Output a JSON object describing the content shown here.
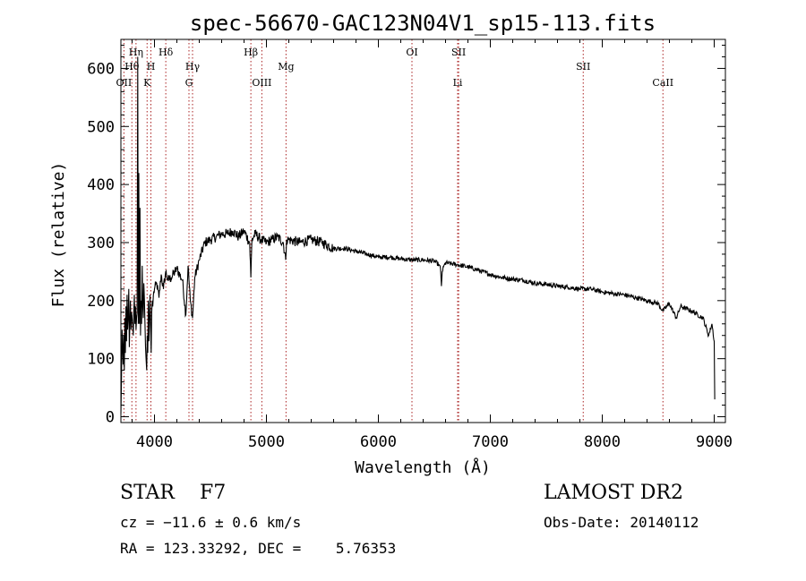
{
  "chart_data": {
    "type": "line",
    "title": "spec-56670-GAC123N04V1_sp15-113.fits",
    "xlabel": "Wavelength (Å)",
    "ylabel": "Flux (relative)",
    "xlim": [
      3700,
      9100
    ],
    "ylim": [
      -10,
      650
    ],
    "xticks": [
      4000,
      5000,
      6000,
      7000,
      8000,
      9000
    ],
    "yticks": [
      0,
      100,
      200,
      300,
      400,
      500,
      600
    ],
    "grid": false,
    "line_color": "#000000",
    "marker_color": "#aa2222",
    "spectrum": {
      "x": [
        3700,
        3705,
        3710,
        3715,
        3720,
        3725,
        3730,
        3735,
        3740,
        3745,
        3750,
        3755,
        3760,
        3765,
        3770,
        3775,
        3780,
        3785,
        3790,
        3795,
        3800,
        3805,
        3810,
        3815,
        3820,
        3825,
        3830,
        3835,
        3840,
        3845,
        3850,
        3855,
        3860,
        3865,
        3870,
        3875,
        3880,
        3885,
        3890,
        3895,
        3900,
        3905,
        3910,
        3915,
        3920,
        3925,
        3930,
        3935,
        3940,
        3945,
        3950,
        3955,
        3960,
        3965,
        3970,
        3975,
        3980,
        3985,
        3990,
        4000,
        4020,
        4040,
        4060,
        4080,
        4100,
        4120,
        4150,
        4200,
        4250,
        4280,
        4300,
        4320,
        4340,
        4360,
        4400,
        4450,
        4500,
        4550,
        4600,
        4650,
        4700,
        4750,
        4800,
        4850,
        4861,
        4870,
        4900,
        4950,
        5000,
        5050,
        5100,
        5150,
        5172,
        5180,
        5200,
        5300,
        5400,
        5500,
        5600,
        5700,
        5800,
        5900,
        6000,
        6100,
        6200,
        6300,
        6400,
        6500,
        6540,
        6555,
        6563,
        6570,
        6590,
        6600,
        6700,
        6800,
        6900,
        7000,
        7100,
        7200,
        7300,
        7400,
        7500,
        7600,
        7700,
        7800,
        7900,
        8000,
        8100,
        8200,
        8300,
        8400,
        8500,
        8540,
        8600,
        8662,
        8700,
        8800,
        8900,
        8950,
        8980,
        9000,
        9005
      ],
      "y": [
        5,
        60,
        150,
        120,
        90,
        140,
        80,
        170,
        110,
        190,
        130,
        210,
        150,
        170,
        220,
        120,
        160,
        200,
        150,
        180,
        170,
        160,
        140,
        180,
        210,
        160,
        190,
        150,
        170,
        180,
        620,
        160,
        420,
        160,
        360,
        140,
        200,
        160,
        260,
        190,
        170,
        230,
        200,
        160,
        120,
        100,
        80,
        140,
        110,
        200,
        130,
        170,
        210,
        160,
        110,
        180,
        200,
        190,
        210,
        220,
        230,
        205,
        245,
        220,
        250,
        235,
        240,
        255,
        235,
        175,
        260,
        200,
        170,
        240,
        270,
        300,
        305,
        310,
        315,
        315,
        320,
        310,
        320,
        300,
        240,
        305,
        315,
        305,
        300,
        305,
        310,
        300,
        270,
        305,
        305,
        300,
        305,
        300,
        290,
        290,
        285,
        280,
        275,
        275,
        272,
        270,
        270,
        268,
        262,
        255,
        225,
        250,
        262,
        265,
        262,
        258,
        252,
        245,
        240,
        237,
        235,
        230,
        228,
        225,
        223,
        220,
        220,
        215,
        212,
        210,
        205,
        200,
        195,
        182,
        195,
        170,
        190,
        182,
        170,
        140,
        160,
        130,
        30
      ]
    },
    "line_markers": [
      {
        "label": "Hη",
        "x": 3835,
        "row": 0
      },
      {
        "label": "Hδ",
        "x": 4101,
        "row": 0
      },
      {
        "label": "Hβ",
        "x": 4861,
        "row": 0
      },
      {
        "label": "OI",
        "x": 6300,
        "row": 0
      },
      {
        "label": "SII",
        "x": 6717,
        "row": 0
      },
      {
        "label": "Hθ",
        "x": 3798,
        "row": 1
      },
      {
        "label": "H",
        "x": 3968,
        "row": 1
      },
      {
        "label": "Hγ",
        "x": 4340,
        "row": 1
      },
      {
        "label": "Mg",
        "x": 5175,
        "row": 1
      },
      {
        "label": "SII",
        "x": 7830,
        "row": 1
      },
      {
        "label": "OII",
        "x": 3727,
        "row": 2
      },
      {
        "label": "K",
        "x": 3934,
        "row": 2
      },
      {
        "label": "G",
        "x": 4308,
        "row": 2
      },
      {
        "label": "OIII",
        "x": 4959,
        "row": 2
      },
      {
        "label": "Li",
        "x": 6708,
        "row": 2
      },
      {
        "label": "CaII",
        "x": 8542,
        "row": 2
      }
    ]
  },
  "info": {
    "star_class": "STAR    F7",
    "cz": "cz = −11.6 ± 0.6 km/s",
    "radec": "RA = 123.33292, DEC =    5.76353",
    "survey": "LAMOST DR2",
    "obs_date": "Obs-Date: 20140112"
  }
}
